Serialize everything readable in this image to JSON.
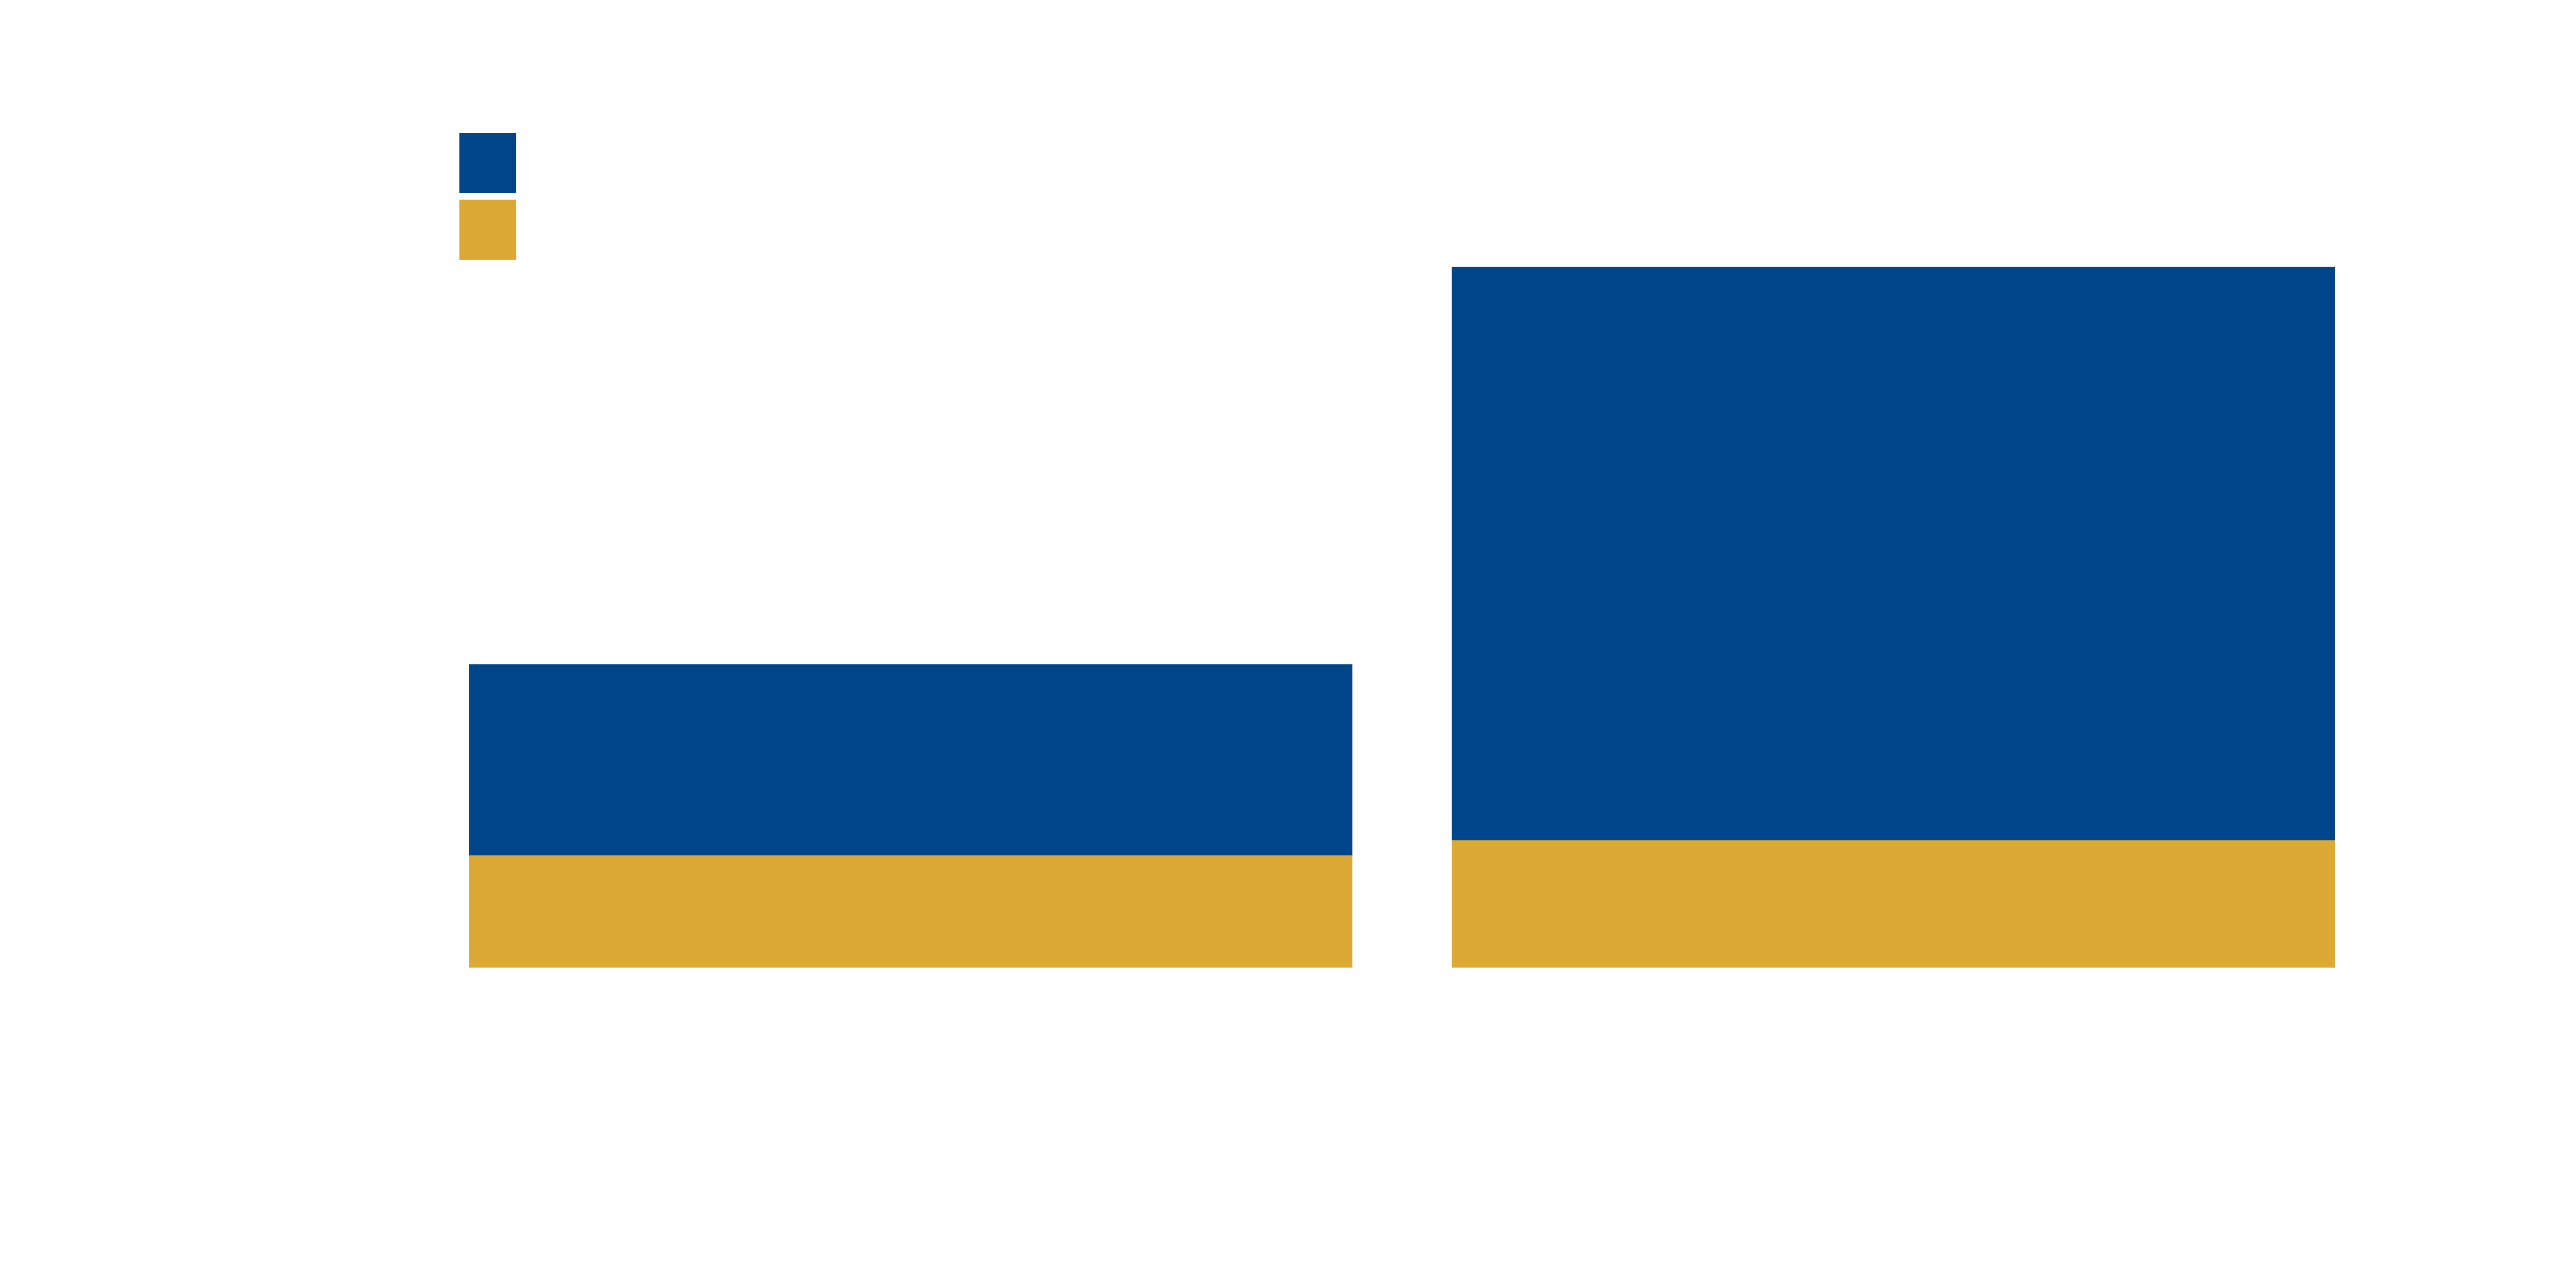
{
  "chart_data": {
    "type": "bar",
    "stacked": true,
    "categories": [
      "",
      ""
    ],
    "series": [
      {
        "color": "#DCA935",
        "values": [
          0.37,
          0.42
        ]
      },
      {
        "color": "#004489",
        "values": [
          0.63,
          1.89
        ]
      }
    ],
    "title": "",
    "xlabel": "",
    "ylabel": "",
    "ylim": [
      0,
      2.31
    ],
    "grid": false,
    "legend": {
      "position": "top-left",
      "orientation": "vertical",
      "order": [
        1,
        0
      ]
    }
  }
}
